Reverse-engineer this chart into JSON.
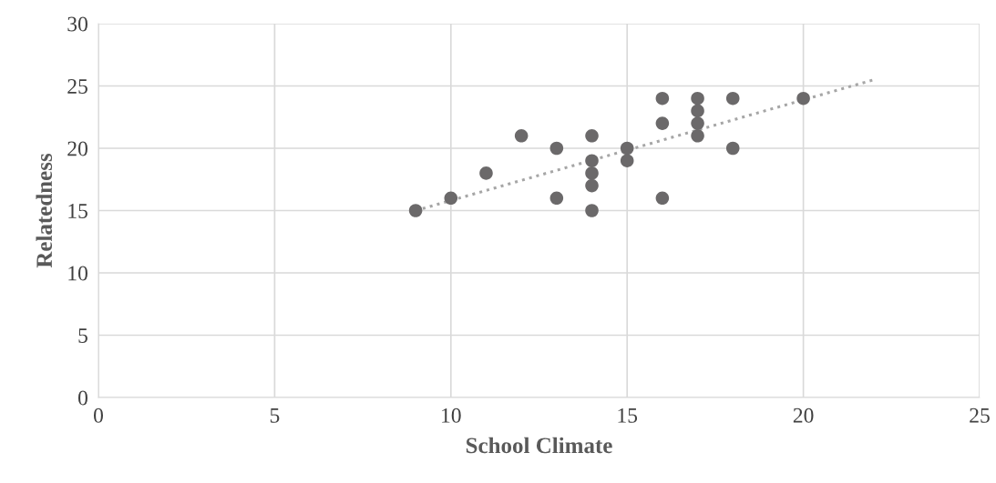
{
  "chart_data": {
    "type": "scatter",
    "xlabel": "School Climate",
    "ylabel": "Relatedness",
    "series": [
      {
        "color": "#6b696a",
        "marker": "circle",
        "x": [
          9,
          10,
          11,
          12,
          13,
          13,
          14,
          14,
          14,
          14,
          14,
          15,
          15,
          16,
          16,
          16,
          17,
          17,
          17,
          17,
          18,
          18,
          20
        ],
        "values": [
          15,
          16,
          18,
          21,
          20,
          16,
          21,
          19,
          18,
          17,
          15,
          20,
          19,
          24,
          22,
          16,
          24,
          23,
          22,
          21,
          24,
          20,
          24
        ]
      },
      {
        "type": "line",
        "color": "#a6a6a6",
        "line_style": "dotted",
        "marker": "none",
        "x": [
          9,
          22
        ],
        "values": [
          15,
          25.5
        ]
      }
    ],
    "xlim": [
      0,
      25
    ],
    "xticks": [
      0,
      5,
      10,
      15,
      20,
      25
    ],
    "ylim": [
      0,
      30
    ],
    "yticks": [
      0,
      5,
      10,
      15,
      20,
      25,
      30
    ],
    "grid": true
  }
}
